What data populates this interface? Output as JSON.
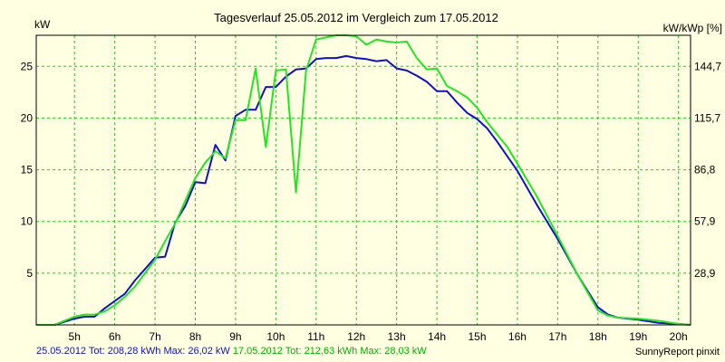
{
  "chart_data": {
    "type": "line",
    "title": "Tagesverlauf 25.05.2012 im Vergleich zum 17.05.2012",
    "ylabel_left": "kW",
    "ylabel_right": "kW/kWp [%]",
    "x_ticks": [
      "5h",
      "6h",
      "7h",
      "8h",
      "9h",
      "10h",
      "11h",
      "12h",
      "13h",
      "14h",
      "15h",
      "16h",
      "17h",
      "18h",
      "19h",
      "20h"
    ],
    "y_ticks_left": [
      5,
      10,
      15,
      20,
      25
    ],
    "y_ticks_right": [
      "28,9",
      "57,9",
      "86,8",
      "115,7",
      "144,7"
    ],
    "xlim": [
      4.05,
      20.3
    ],
    "ylim": [
      0,
      28
    ],
    "grid": true,
    "colors": {
      "series_1": "#1010c8",
      "series_2": "#22e622",
      "grid": "#22cc22",
      "background": "#ffffe1"
    },
    "series": [
      {
        "name": "25.05.2012",
        "x": [
          4.05,
          4.5,
          4.75,
          5.0,
          5.25,
          5.5,
          5.75,
          6.0,
          6.25,
          6.5,
          6.75,
          7.0,
          7.25,
          7.5,
          7.75,
          8.0,
          8.25,
          8.5,
          8.75,
          9.0,
          9.25,
          9.5,
          9.75,
          10.0,
          10.25,
          10.5,
          10.75,
          11.0,
          11.25,
          11.5,
          11.75,
          12.0,
          12.25,
          12.5,
          12.75,
          13.0,
          13.25,
          13.5,
          13.75,
          14.0,
          14.25,
          14.5,
          14.75,
          15.0,
          15.25,
          15.5,
          15.75,
          16.0,
          16.5,
          17.0,
          17.5,
          18.0,
          18.25,
          18.5,
          19.0,
          19.5,
          20.0,
          20.3
        ],
        "y": [
          0,
          0,
          0.3,
          0.6,
          0.8,
          0.8,
          1.6,
          2.3,
          3.0,
          4.3,
          5.4,
          6.5,
          6.6,
          9.9,
          11.5,
          13.8,
          13.7,
          17.4,
          15.9,
          20.2,
          20.8,
          20.8,
          23.0,
          23.0,
          24.0,
          24.7,
          24.8,
          25.7,
          25.8,
          25.8,
          26.0,
          25.8,
          25.7,
          25.5,
          25.6,
          24.8,
          24.6,
          24.1,
          23.5,
          22.6,
          22.6,
          21.5,
          20.5,
          19.9,
          19.0,
          17.7,
          16.3,
          14.9,
          11.5,
          8.3,
          4.8,
          1.7,
          1.0,
          0.7,
          0.5,
          0.2,
          0.1,
          0
        ]
      },
      {
        "name": "17.05.2012",
        "x": [
          4.05,
          4.5,
          4.75,
          5.0,
          5.25,
          5.5,
          5.75,
          6.0,
          6.25,
          6.5,
          6.75,
          7.0,
          7.25,
          7.5,
          7.75,
          8.0,
          8.25,
          8.5,
          8.75,
          9.0,
          9.25,
          9.5,
          9.75,
          10.0,
          10.25,
          10.5,
          10.75,
          11.0,
          11.25,
          11.5,
          11.75,
          12.0,
          12.25,
          12.5,
          12.75,
          13.0,
          13.25,
          13.5,
          13.75,
          14.0,
          14.25,
          14.5,
          14.75,
          15.0,
          15.25,
          15.5,
          15.75,
          16.0,
          16.5,
          17.0,
          17.5,
          18.0,
          18.25,
          18.5,
          19.0,
          19.5,
          20.0,
          20.3
        ],
        "y": [
          0,
          0,
          0.4,
          0.8,
          1.0,
          1.0,
          1.3,
          1.9,
          2.7,
          3.7,
          5.0,
          6.3,
          8.1,
          9.8,
          12.0,
          14.2,
          15.7,
          16.8,
          16.1,
          19.8,
          19.8,
          24.8,
          17.2,
          24.6,
          24.7,
          12.8,
          24.6,
          27.6,
          27.8,
          28.0,
          28.0,
          27.9,
          27.1,
          27.6,
          27.4,
          27.3,
          27.4,
          25.8,
          24.7,
          24.8,
          23.1,
          22.6,
          22.0,
          21.0,
          19.6,
          18.4,
          17.2,
          15.6,
          12.3,
          8.6,
          4.8,
          1.4,
          0.9,
          0.7,
          0.6,
          0.4,
          0.1,
          0
        ]
      }
    ]
  },
  "footer": {
    "series_1_summary": "25.05.2012 Tot: 208,28 kWh Max: 26,02 kW",
    "series_2_summary": "17.05.2012 Tot: 212,63 kWh Max: 28,03 kW",
    "credit": "SunnyReport pinxit"
  }
}
